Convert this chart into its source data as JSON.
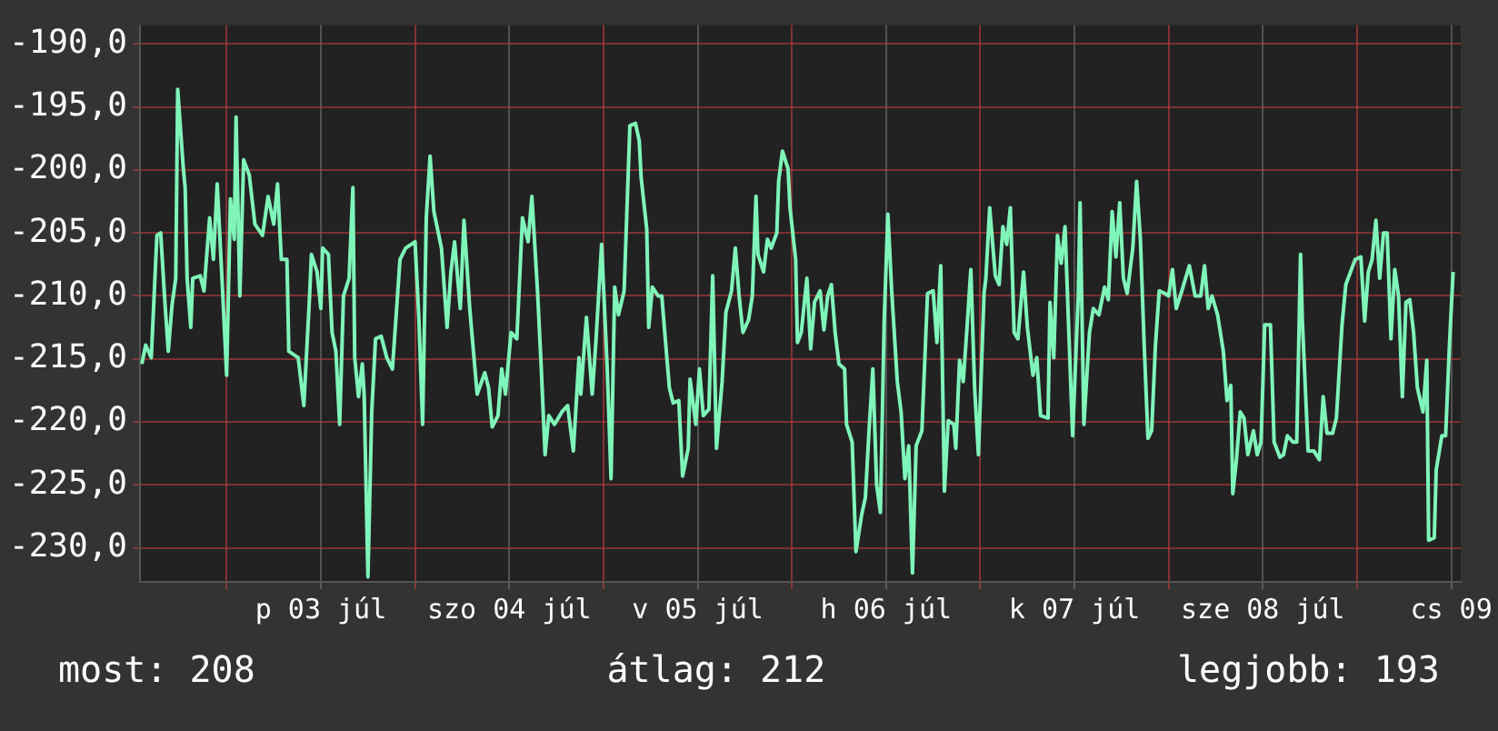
{
  "chart_data": {
    "type": "line",
    "x": [
      "--07-02T13:12",
      "--07-02T13:41",
      "--07-02T14:24",
      "--07-02T15:07",
      "--07-02T15:36",
      "--07-02T16:05",
      "--07-02T16:34",
      "--07-02T17:02",
      "--07-02T17:31",
      "--07-02T17:46",
      "--07-02T18:29",
      "--07-02T18:43",
      "--07-02T18:58",
      "--07-02T19:26",
      "--07-02T19:41",
      "--07-02T20:38",
      "--07-02T21:07",
      "--07-02T21:50",
      "--07-02T22:19",
      "--07-02T22:48",
      "--07-02T23:31",
      "--07-03T00:00",
      "--07-03T00:29",
      "--07-03T00:58",
      "--07-03T01:12",
      "--07-03T01:41",
      "--07-03T02:10",
      "--07-03T02:53",
      "--07-03T03:36",
      "--07-03T04:34",
      "--07-03T05:17",
      "--07-03T06:00",
      "--07-03T06:29",
      "--07-03T06:58",
      "--07-03T07:41",
      "--07-03T07:55",
      "--07-03T09:07",
      "--07-03T09:50",
      "--07-03T10:34",
      "--07-03T10:48",
      "--07-03T11:31",
      "--07-03T12:00",
      "--07-03T12:14",
      "--07-03T12:58",
      "--07-03T13:26",
      "--07-03T13:55",
      "--07-03T14:24",
      "--07-03T14:53",
      "--07-03T15:36",
      "--07-03T16:05",
      "--07-03T16:19",
      "--07-03T16:48",
      "--07-03T17:17",
      "--07-03T17:31",
      "--07-03T18:00",
      "--07-03T18:29",
      "--07-03T18:58",
      "--07-03T19:41",
      "--07-03T20:24",
      "--07-03T21:07",
      "--07-03T21:36",
      "--07-03T22:05",
      "--07-03T22:48",
      "--07-04T00:00",
      "--07-04T00:29",
      "--07-04T00:58",
      "--07-04T01:26",
      "--07-04T01:55",
      "--07-04T02:24",
      "--07-04T03:22",
      "--07-04T04:05",
      "--07-04T04:34",
      "--07-04T05:02",
      "--07-04T05:46",
      "--07-04T06:14",
      "--07-04T06:58",
      "--07-04T07:55",
      "--07-04T08:53",
      "--07-04T09:22",
      "--07-04T09:50",
      "--07-04T10:34",
      "--07-04T11:02",
      "--07-04T11:31",
      "--07-04T12:14",
      "--07-04T12:58",
      "--07-04T13:41",
      "--07-04T14:24",
      "--07-04T14:53",
      "--07-04T15:36",
      "--07-04T16:05",
      "--07-04T16:34",
      "--07-04T17:02",
      "--07-04T17:46",
      "--07-04T18:43",
      "--07-04T19:26",
      "--07-04T20:10",
      "--07-04T20:53",
      "--07-04T21:07",
      "--07-04T21:50",
      "--07-04T22:34",
      "--07-04T23:02",
      "--07-04T23:46",
      "--07-05T00:29",
      "--07-05T00:58",
      "--07-05T01:26",
      "--07-05T01:55",
      "--07-05T02:38",
      "--07-05T03:22",
      "--07-05T04:05",
      "--07-05T04:34",
      "--07-05T04:48",
      "--07-05T05:31",
      "--07-05T05:46",
      "--07-05T06:14",
      "--07-05T06:58",
      "--07-05T07:26",
      "--07-05T07:55",
      "--07-05T08:24",
      "--07-05T08:53",
      "--07-05T09:36",
      "--07-05T10:05",
      "--07-05T10:48",
      "--07-05T11:02",
      "--07-05T11:46",
      "--07-05T12:14",
      "--07-05T12:43",
      "--07-05T13:26",
      "--07-05T13:55",
      "--07-05T14:24",
      "--07-05T15:07",
      "--07-05T15:36",
      "--07-05T16:19",
      "--07-05T16:48",
      "--07-05T17:17",
      "--07-05T17:46",
      "--07-05T18:29",
      "--07-05T18:58",
      "--07-05T19:26",
      "--07-05T19:41",
      "--07-05T20:24",
      "--07-05T20:53",
      "--07-05T21:22",
      "--07-05T22:05",
      "--07-05T22:19",
      "--07-05T22:48",
      "--07-05T23:31",
      "--07-05T23:46",
      "--07-06T00:29",
      "--07-06T00:43",
      "--07-06T01:12",
      "--07-06T01:55",
      "--07-06T02:24",
      "--07-06T02:53",
      "--07-06T03:36",
      "--07-06T04:05",
      "--07-06T04:34",
      "--07-06T05:02",
      "--07-06T05:31",
      "--07-06T06:00",
      "--07-06T06:43",
      "--07-06T06:58",
      "--07-06T07:41",
      "--07-06T08:10",
      "--07-06T08:53",
      "--07-06T09:22",
      "--07-06T09:50",
      "--07-06T10:19",
      "--07-06T10:48",
      "--07-06T11:17",
      "--07-06T11:46",
      "--07-06T12:14",
      "--07-06T12:43",
      "--07-06T13:26",
      "--07-06T13:55",
      "--07-06T14:24",
      "--07-06T14:53",
      "--07-06T15:22",
      "--07-06T15:50",
      "--07-06T16:34",
      "--07-06T17:17",
      "--07-06T18:00",
      "--07-06T18:29",
      "--07-06T18:58",
      "--07-06T19:26",
      "--07-06T19:55",
      "--07-06T20:38",
      "--07-06T20:53",
      "--07-06T21:22",
      "--07-06T21:50",
      "--07-06T22:19",
      "--07-06T22:48",
      "--07-06T23:17",
      "--07-06T23:46",
      "--07-07T00:29",
      "--07-07T00:43",
      "--07-07T01:12",
      "--07-07T01:55",
      "--07-07T02:24",
      "--07-07T02:53",
      "--07-07T03:22",
      "--07-07T03:50",
      "--07-07T04:19",
      "--07-07T04:48",
      "--07-07T05:31",
      "--07-07T06:00",
      "--07-07T06:43",
      "--07-07T07:12",
      "--07-07T07:41",
      "--07-07T08:38",
      "--07-07T08:53",
      "--07-07T09:22",
      "--07-07T09:50",
      "--07-07T10:19",
      "--07-07T10:48",
      "--07-07T11:17",
      "--07-07T11:46",
      "--07-07T12:29",
      "--07-07T12:43",
      "--07-07T13:12",
      "--07-07T13:55",
      "--07-07T14:24",
      "--07-07T15:07",
      "--07-07T15:50",
      "--07-07T16:19",
      "--07-07T16:48",
      "--07-07T17:17",
      "--07-07T17:46",
      "--07-07T18:14",
      "--07-07T18:43",
      "--07-07T19:26",
      "--07-07T19:55",
      "--07-07T20:24",
      "--07-07T20:53",
      "--07-07T21:22",
      "--07-07T21:50",
      "--07-07T22:19",
      "--07-07T22:48",
      "--07-07T23:31",
      "--07-08T00:00",
      "--07-08T00:29",
      "--07-08T00:58",
      "--07-08T01:41",
      "--07-08T02:38",
      "--07-08T03:22",
      "--07-08T04:05",
      "--07-08T04:34",
      "--07-08T05:02",
      "--07-08T05:31",
      "--07-08T06:14",
      "--07-08T06:58",
      "--07-08T07:26",
      "--07-08T07:55",
      "--07-08T08:10",
      "--07-08T08:38",
      "--07-08T09:07",
      "--07-08T09:36",
      "--07-08T10:05",
      "--07-08T10:48",
      "--07-08T11:17",
      "--07-08T11:46",
      "--07-08T12:14",
      "--07-08T12:58",
      "--07-08T13:26",
      "--07-08T14:10",
      "--07-08T14:38",
      "--07-08T15:07",
      "--07-08T15:50",
      "--07-08T16:19",
      "--07-08T16:48",
      "--07-08T17:02",
      "--07-08T17:46",
      "--07-08T18:29",
      "--07-08T19:12",
      "--07-08T19:41",
      "--07-08T20:10",
      "--07-08T20:53",
      "--07-08T21:22",
      "--07-08T22:05",
      "--07-08T22:34",
      "--07-08T23:17",
      "--07-08T23:46",
      "--07-09T00:29",
      "--07-09T00:58",
      "--07-09T01:26",
      "--07-09T01:55",
      "--07-09T02:24",
      "--07-09T02:53",
      "--07-09T03:22",
      "--07-09T03:50",
      "--07-09T04:19",
      "--07-09T04:48",
      "--07-09T05:17",
      "--07-09T05:46",
      "--07-09T06:14",
      "--07-09T06:43",
      "--07-09T07:12",
      "--07-09T07:41",
      "--07-09T08:24",
      "--07-09T08:53",
      "--07-09T09:07",
      "--07-09T09:50",
      "--07-09T10:05",
      "--07-09T10:48",
      "--07-09T11:17",
      "--07-09T11:46",
      "--07-09T12:14"
    ],
    "series": [
      {
        "color": "#7ff5b9",
        "values": [
          -215.4,
          -213.9,
          -214.9,
          -205.2,
          -205.0,
          -210.0,
          -214.4,
          -210.8,
          -208.6,
          -193.6,
          -199.9,
          -201.4,
          -208.6,
          -212.5,
          -208.6,
          -208.4,
          -209.6,
          -203.8,
          -207.1,
          -201.1,
          -210.0,
          -216.3,
          -202.3,
          -205.5,
          -195.8,
          -210.0,
          -199.2,
          -200.4,
          -204.3,
          -205.2,
          -202.1,
          -204.3,
          -201.1,
          -207.1,
          -207.1,
          -214.4,
          -214.9,
          -218.7,
          -210.0,
          -206.7,
          -208.1,
          -211.0,
          -206.2,
          -206.7,
          -212.9,
          -214.4,
          -220.2,
          -210.0,
          -208.6,
          -201.4,
          -214.9,
          -218.0,
          -215.4,
          -217.8,
          -232.3,
          -219.2,
          -213.4,
          -213.2,
          -214.9,
          -215.8,
          -211.5,
          -207.1,
          -206.2,
          -205.7,
          -211.7,
          -220.2,
          -203.8,
          -198.9,
          -203.3,
          -206.2,
          -212.5,
          -208.1,
          -205.7,
          -211.0,
          -204.0,
          -211.0,
          -217.8,
          -216.1,
          -217.3,
          -220.4,
          -219.5,
          -215.8,
          -217.8,
          -212.9,
          -213.4,
          -203.8,
          -205.7,
          -202.1,
          -209.6,
          -215.8,
          -222.6,
          -219.5,
          -220.2,
          -219.2,
          -218.7,
          -222.3,
          -214.9,
          -217.8,
          -211.7,
          -217.8,
          -213.7,
          -205.9,
          -215.8,
          -224.5,
          -209.3,
          -211.5,
          -209.6,
          -196.5,
          -196.3,
          -197.7,
          -200.6,
          -204.7,
          -212.5,
          -209.3,
          -210.0,
          -210.0,
          -213.7,
          -217.3,
          -218.5,
          -218.3,
          -224.3,
          -222.1,
          -216.6,
          -220.2,
          -215.8,
          -219.5,
          -219.0,
          -208.4,
          -222.1,
          -216.8,
          -211.3,
          -209.6,
          -206.2,
          -210.0,
          -212.9,
          -211.9,
          -210.0,
          -202.1,
          -206.7,
          -208.1,
          -205.5,
          -206.2,
          -205.0,
          -200.9,
          -198.5,
          -199.9,
          -203.0,
          -207.1,
          -213.7,
          -212.9,
          -208.6,
          -214.2,
          -210.5,
          -209.6,
          -212.7,
          -210.0,
          -209.1,
          -212.9,
          -215.4,
          -215.8,
          -220.2,
          -221.6,
          -230.3,
          -227.4,
          -226.0,
          -220.7,
          -215.8,
          -225.0,
          -227.2,
          -211.9,
          -203.5,
          -209.6,
          -216.8,
          -219.2,
          -224.5,
          -221.9,
          -232.0,
          -221.9,
          -220.7,
          -209.8,
          -209.6,
          -213.7,
          -207.6,
          -225.5,
          -219.9,
          -220.2,
          -222.1,
          -215.1,
          -216.8,
          -212.5,
          -207.9,
          -217.3,
          -222.6,
          -209.8,
          -208.6,
          -203.0,
          -208.4,
          -209.1,
          -204.5,
          -205.9,
          -203.0,
          -212.9,
          -213.4,
          -208.1,
          -212.5,
          -216.3,
          -214.9,
          -219.5,
          -219.7,
          -210.5,
          -214.9,
          -205.2,
          -207.4,
          -204.5,
          -212.9,
          -221.1,
          -210.0,
          -202.6,
          -220.2,
          -212.9,
          -211.0,
          -211.5,
          -209.3,
          -210.3,
          -203.3,
          -206.9,
          -202.6,
          -208.6,
          -209.8,
          -206.2,
          -200.9,
          -205.5,
          -213.9,
          -221.3,
          -220.7,
          -213.9,
          -209.6,
          -209.8,
          -210.0,
          -207.9,
          -211.0,
          -209.6,
          -207.6,
          -210.0,
          -210.0,
          -207.6,
          -211.0,
          -210.0,
          -211.5,
          -214.4,
          -218.3,
          -217.1,
          -225.7,
          -223.0,
          -219.2,
          -219.7,
          -222.6,
          -220.7,
          -222.6,
          -221.6,
          -212.3,
          -212.3,
          -221.6,
          -222.8,
          -222.6,
          -221.1,
          -221.6,
          -221.6,
          -206.7,
          -212.0,
          -222.3,
          -222.3,
          -223.0,
          -218.0,
          -220.9,
          -220.9,
          -219.7,
          -212.3,
          -209.1,
          -207.9,
          -207.1,
          -206.9,
          -212.0,
          -208.1,
          -207.1,
          -204.0,
          -208.6,
          -205.0,
          -205.0,
          -213.4,
          -207.9,
          -210.0,
          -218.0,
          -210.5,
          -210.3,
          -212.9,
          -217.3,
          -219.2,
          -215.1,
          -229.4,
          -229.2,
          -223.8,
          -221.1,
          -221.1,
          -213.9,
          -208.1
        ]
      }
    ],
    "xlim": [
      "--07-02T12:58",
      "--07-09T13:12"
    ],
    "xticks": [
      {
        "value": "--07-03",
        "label": null
      },
      {
        "value": "--07-03T12:00",
        "label": "p 03 júl"
      },
      {
        "value": "--07-04",
        "label": null
      },
      {
        "value": "--07-04T12:00",
        "label": "szo 04 júl"
      },
      {
        "value": "--07-05",
        "label": null
      },
      {
        "value": "--07-05T12:00",
        "label": "v 05 júl"
      },
      {
        "value": "--07-06",
        "label": null
      },
      {
        "value": "--07-06T12:00",
        "label": "h 06 júl"
      },
      {
        "value": "--07-07",
        "label": null
      },
      {
        "value": "--07-07T12:00",
        "label": "k 07 júl"
      },
      {
        "value": "--07-08",
        "label": null
      },
      {
        "value": "--07-08T12:00",
        "label": "sze 08 júl"
      },
      {
        "value": "--07-09",
        "label": null
      },
      {
        "value": "--07-09T12:00",
        "label": "cs 09"
      }
    ],
    "ylim": [
      -232.7,
      -188.5
    ],
    "yticks": [
      {
        "value": -230,
        "label": "-230,0"
      },
      {
        "value": -225,
        "label": "-225,0"
      },
      {
        "value": -220,
        "label": "-220,0"
      },
      {
        "value": -215,
        "label": "-215,0"
      },
      {
        "value": -210,
        "label": "-210,0"
      },
      {
        "value": -205,
        "label": "-205,0"
      },
      {
        "value": -200,
        "label": "-200,0"
      },
      {
        "value": -195,
        "label": "-195,0"
      },
      {
        "value": -190,
        "label": "-190,0"
      }
    ],
    "grid": true,
    "marker": "none",
    "line_style": "solid",
    "annotations": [
      "most: 208",
      "átlag: 212",
      "legjobb: 193"
    ]
  }
}
